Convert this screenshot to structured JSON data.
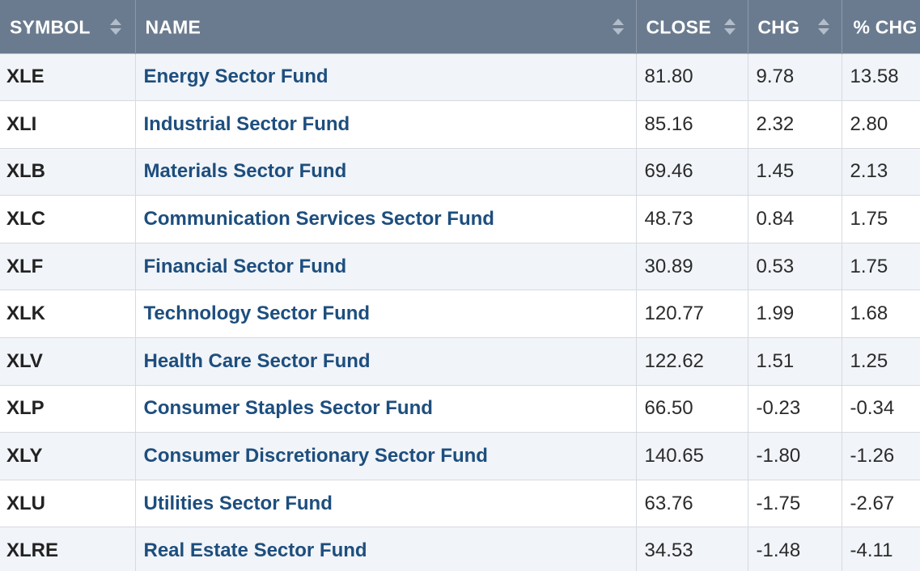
{
  "columns": [
    {
      "label": "SYMBOL"
    },
    {
      "label": "NAME"
    },
    {
      "label": "CLOSE"
    },
    {
      "label": "CHG"
    },
    {
      "label": "% CHG"
    }
  ],
  "rows": [
    {
      "symbol": "XLE",
      "name": "Energy Sector Fund",
      "close": "81.80",
      "chg": "9.78",
      "pct_chg": "13.58"
    },
    {
      "symbol": "XLI",
      "name": "Industrial Sector Fund",
      "close": "85.16",
      "chg": "2.32",
      "pct_chg": "2.80"
    },
    {
      "symbol": "XLB",
      "name": "Materials Sector Fund",
      "close": "69.46",
      "chg": "1.45",
      "pct_chg": "2.13"
    },
    {
      "symbol": "XLC",
      "name": "Communication Services Sector Fund",
      "close": "48.73",
      "chg": "0.84",
      "pct_chg": "1.75"
    },
    {
      "symbol": "XLF",
      "name": "Financial Sector Fund",
      "close": "30.89",
      "chg": "0.53",
      "pct_chg": "1.75"
    },
    {
      "symbol": "XLK",
      "name": "Technology Sector Fund",
      "close": "120.77",
      "chg": "1.99",
      "pct_chg": "1.68"
    },
    {
      "symbol": "XLV",
      "name": "Health Care Sector Fund",
      "close": "122.62",
      "chg": "1.51",
      "pct_chg": "1.25"
    },
    {
      "symbol": "XLP",
      "name": "Consumer Staples Sector Fund",
      "close": "66.50",
      "chg": "-0.23",
      "pct_chg": "-0.34"
    },
    {
      "symbol": "XLY",
      "name": "Consumer Discretionary Sector Fund",
      "close": "140.65",
      "chg": "-1.80",
      "pct_chg": "-1.26"
    },
    {
      "symbol": "XLU",
      "name": "Utilities Sector Fund",
      "close": "63.76",
      "chg": "-1.75",
      "pct_chg": "-2.67"
    },
    {
      "symbol": "XLRE",
      "name": "Real Estate Sector Fund",
      "close": "34.53",
      "chg": "-1.48",
      "pct_chg": "-4.11"
    }
  ],
  "icons": {
    "sort": "sort-arrows-icon"
  },
  "colors": {
    "header_bg": "#6b7b8f",
    "link": "#1d4e7e",
    "row_alt": "#f1f4f8"
  }
}
